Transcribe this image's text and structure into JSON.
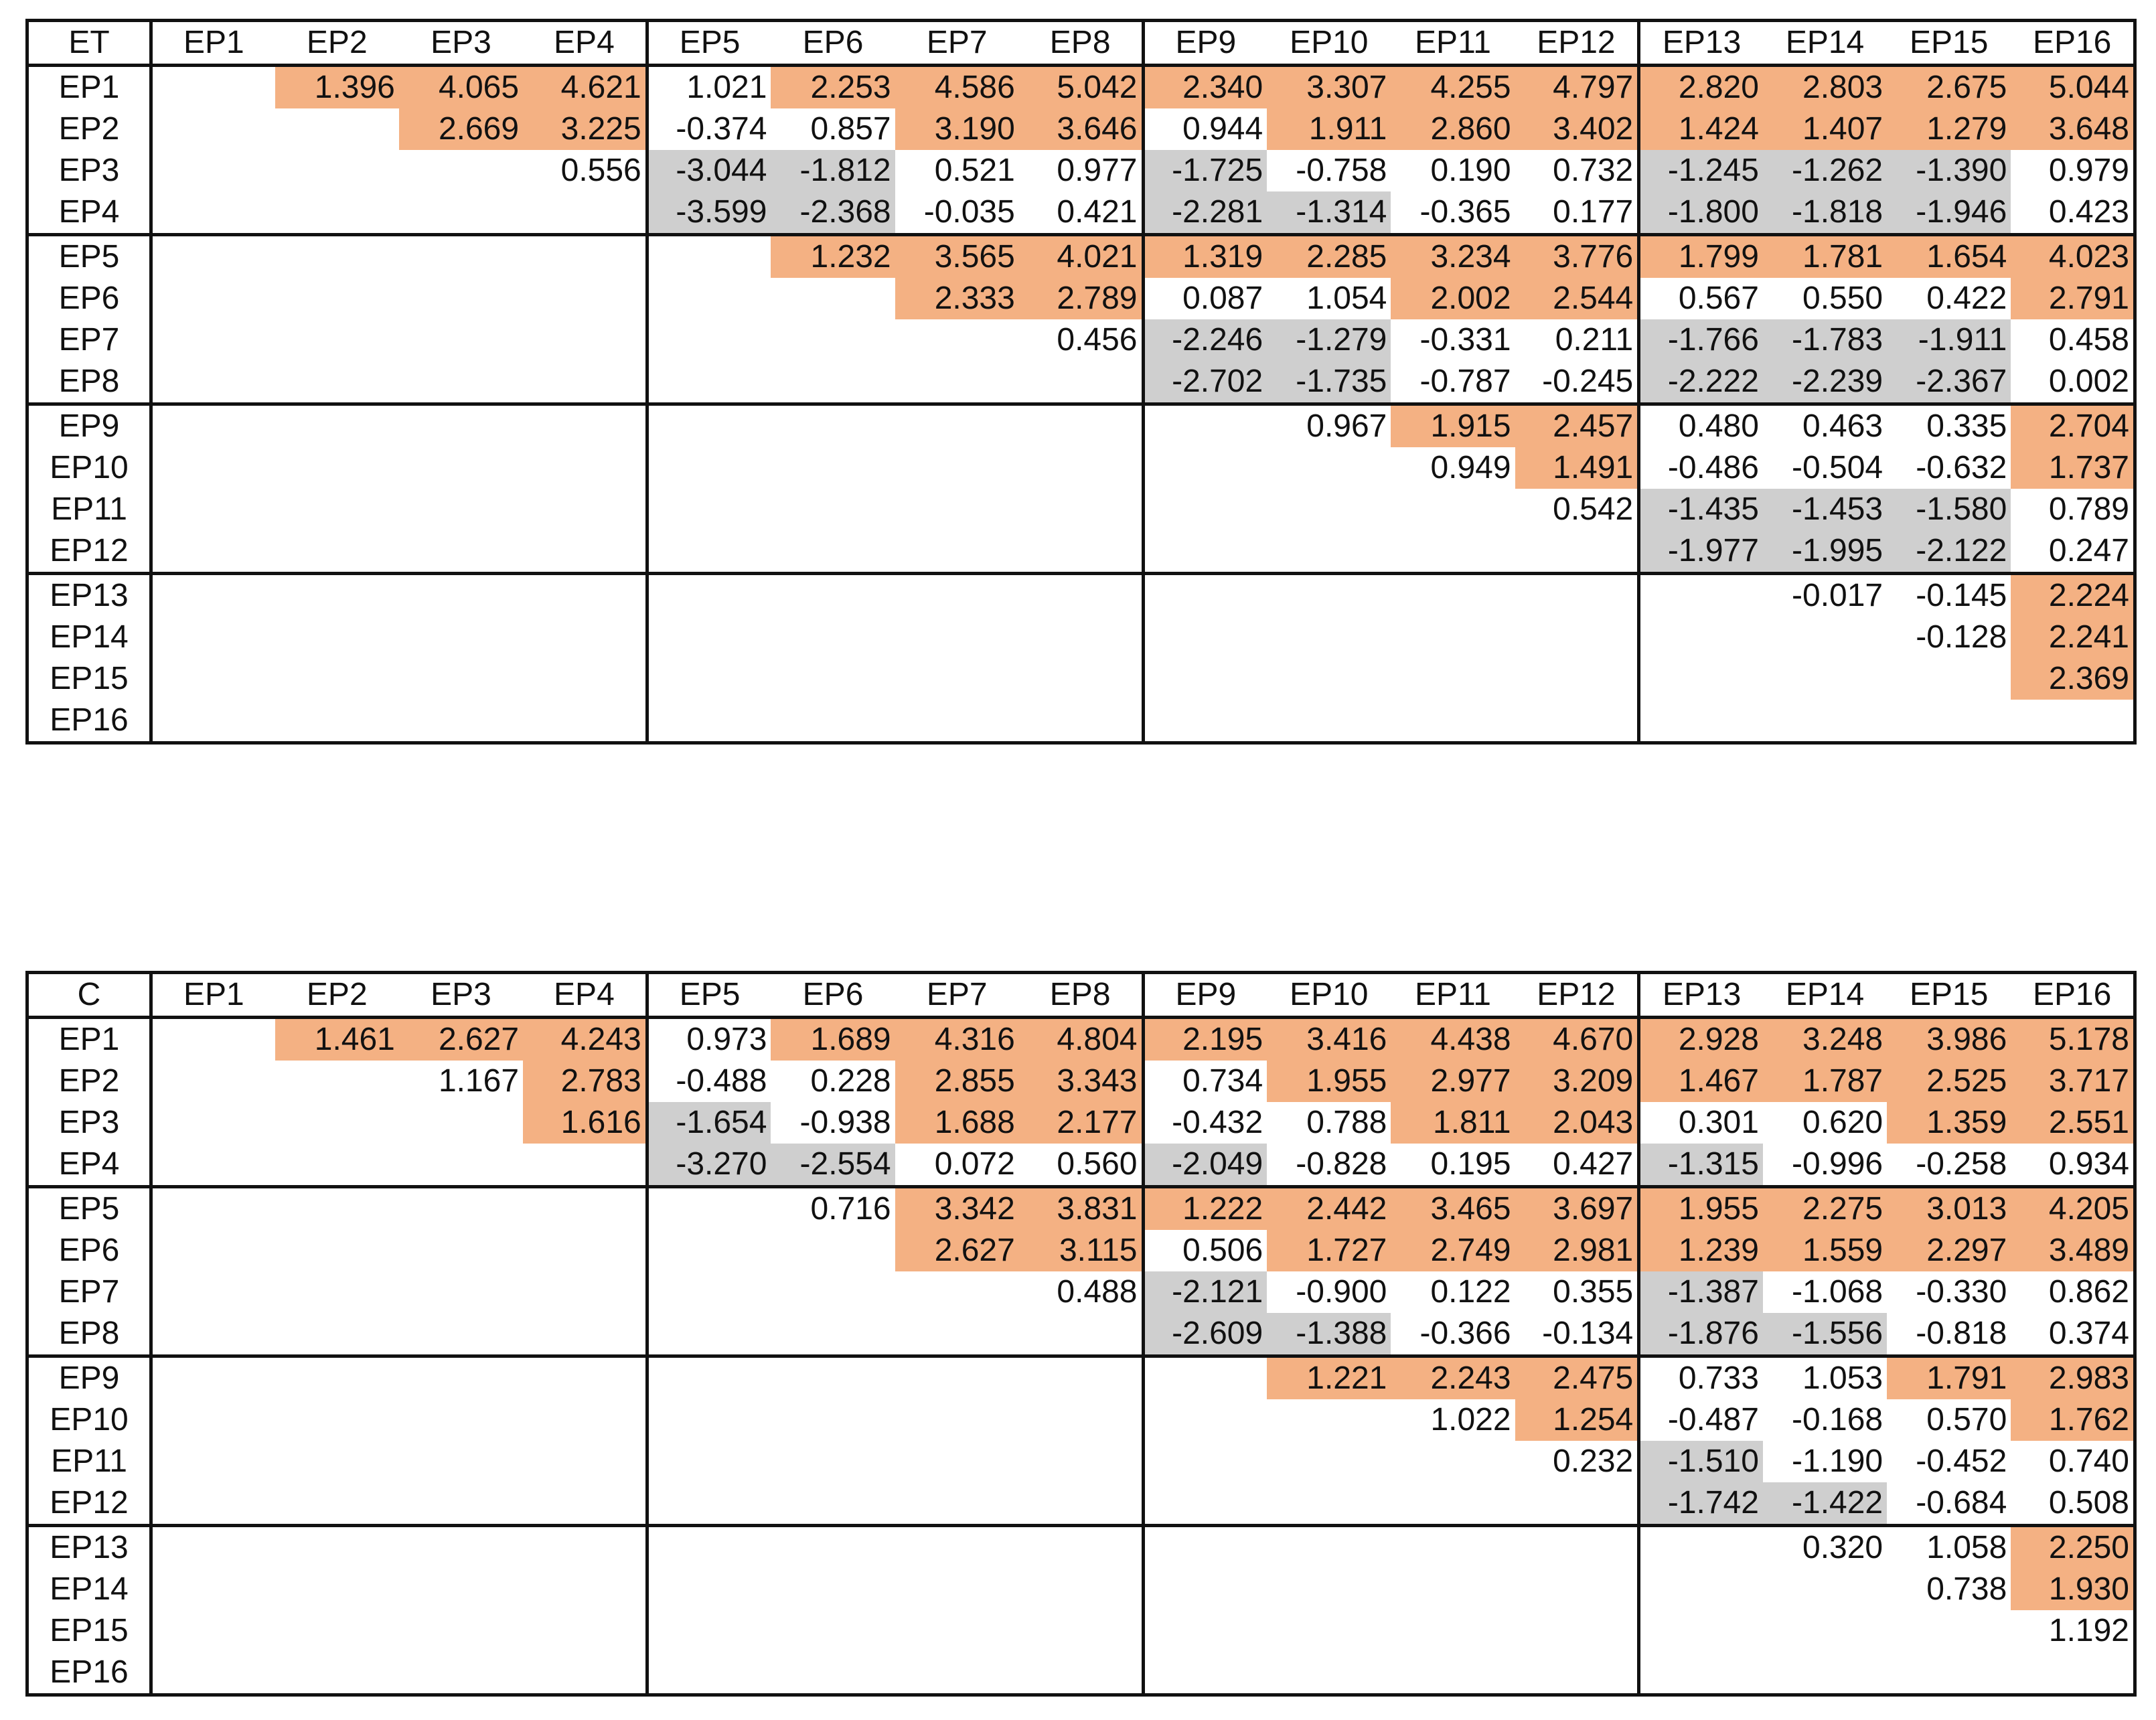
{
  "headers": [
    "EP1",
    "EP2",
    "EP3",
    "EP4",
    "EP5",
    "EP6",
    "EP7",
    "EP8",
    "EP9",
    "EP10",
    "EP11",
    "EP12",
    "EP13",
    "EP14",
    "EP15",
    "EP16"
  ],
  "tables": [
    {
      "label": "ET",
      "rows": [
        [
          null,
          "1.396",
          "4.065",
          "4.621",
          "1.021",
          "2.253",
          "4.586",
          "5.042",
          "2.340",
          "3.307",
          "4.255",
          "4.797",
          "2.820",
          "2.803",
          "2.675",
          "5.044"
        ],
        [
          null,
          null,
          "2.669",
          "3.225",
          "-0.374",
          "0.857",
          "3.190",
          "3.646",
          "0.944",
          "1.911",
          "2.860",
          "3.402",
          "1.424",
          "1.407",
          "1.279",
          "3.648"
        ],
        [
          null,
          null,
          null,
          "0.556",
          "-3.044",
          "-1.812",
          "0.521",
          "0.977",
          "-1.725",
          "-0.758",
          "0.190",
          "0.732",
          "-1.245",
          "-1.262",
          "-1.390",
          "0.979"
        ],
        [
          null,
          null,
          null,
          null,
          "-3.599",
          "-2.368",
          "-0.035",
          "0.421",
          "-2.281",
          "-1.314",
          "-0.365",
          "0.177",
          "-1.800",
          "-1.818",
          "-1.946",
          "0.423"
        ],
        [
          null,
          null,
          null,
          null,
          null,
          "1.232",
          "3.565",
          "4.021",
          "1.319",
          "2.285",
          "3.234",
          "3.776",
          "1.799",
          "1.781",
          "1.654",
          "4.023"
        ],
        [
          null,
          null,
          null,
          null,
          null,
          null,
          "2.333",
          "2.789",
          "0.087",
          "1.054",
          "2.002",
          "2.544",
          "0.567",
          "0.550",
          "0.422",
          "2.791"
        ],
        [
          null,
          null,
          null,
          null,
          null,
          null,
          null,
          "0.456",
          "-2.246",
          "-1.279",
          "-0.331",
          "0.211",
          "-1.766",
          "-1.783",
          "-1.911",
          "0.458"
        ],
        [
          null,
          null,
          null,
          null,
          null,
          null,
          null,
          null,
          "-2.702",
          "-1.735",
          "-0.787",
          "-0.245",
          "-2.222",
          "-2.239",
          "-2.367",
          "0.002"
        ],
        [
          null,
          null,
          null,
          null,
          null,
          null,
          null,
          null,
          null,
          "0.967",
          "1.915",
          "2.457",
          "0.480",
          "0.463",
          "0.335",
          "2.704"
        ],
        [
          null,
          null,
          null,
          null,
          null,
          null,
          null,
          null,
          null,
          null,
          "0.949",
          "1.491",
          "-0.486",
          "-0.504",
          "-0.632",
          "1.737"
        ],
        [
          null,
          null,
          null,
          null,
          null,
          null,
          null,
          null,
          null,
          null,
          null,
          "0.542",
          "-1.435",
          "-1.453",
          "-1.580",
          "0.789"
        ],
        [
          null,
          null,
          null,
          null,
          null,
          null,
          null,
          null,
          null,
          null,
          null,
          null,
          "-1.977",
          "-1.995",
          "-2.122",
          "0.247"
        ],
        [
          null,
          null,
          null,
          null,
          null,
          null,
          null,
          null,
          null,
          null,
          null,
          null,
          null,
          "-0.017",
          "-0.145",
          "2.224"
        ],
        [
          null,
          null,
          null,
          null,
          null,
          null,
          null,
          null,
          null,
          null,
          null,
          null,
          null,
          null,
          "-0.128",
          "2.241"
        ],
        [
          null,
          null,
          null,
          null,
          null,
          null,
          null,
          null,
          null,
          null,
          null,
          null,
          null,
          null,
          null,
          "2.369"
        ],
        [
          null,
          null,
          null,
          null,
          null,
          null,
          null,
          null,
          null,
          null,
          null,
          null,
          null,
          null,
          null,
          null
        ]
      ],
      "shading": [
        [
          "",
          "pos",
          "pos",
          "pos",
          "",
          "pos",
          "pos",
          "pos",
          "pos",
          "pos",
          "pos",
          "pos",
          "pos",
          "pos",
          "pos",
          "pos"
        ],
        [
          "",
          "",
          "pos",
          "pos",
          "",
          "",
          "pos",
          "pos",
          "",
          "pos",
          "pos",
          "pos",
          "pos",
          "pos",
          "pos",
          "pos"
        ],
        [
          "",
          "",
          "",
          "",
          "neg",
          "neg",
          "",
          "",
          "neg",
          "",
          "",
          "",
          "neg",
          "neg",
          "neg",
          ""
        ],
        [
          "",
          "",
          "",
          "",
          "neg",
          "neg",
          "",
          "",
          "neg",
          "neg",
          "",
          "",
          "neg",
          "neg",
          "neg",
          ""
        ],
        [
          "",
          "",
          "",
          "",
          "",
          "pos",
          "pos",
          "pos",
          "pos",
          "pos",
          "pos",
          "pos",
          "pos",
          "pos",
          "pos",
          "pos"
        ],
        [
          "",
          "",
          "",
          "",
          "",
          "",
          "pos",
          "pos",
          "",
          "",
          "pos",
          "pos",
          "",
          "",
          "",
          "pos"
        ],
        [
          "",
          "",
          "",
          "",
          "",
          "",
          "",
          "",
          "neg",
          "neg",
          "",
          "",
          "neg",
          "neg",
          "neg",
          ""
        ],
        [
          "",
          "",
          "",
          "",
          "",
          "",
          "",
          "",
          "neg",
          "neg",
          "",
          "",
          "neg",
          "neg",
          "neg",
          ""
        ],
        [
          "",
          "",
          "",
          "",
          "",
          "",
          "",
          "",
          "",
          "",
          "pos",
          "pos",
          "",
          "",
          "",
          "pos"
        ],
        [
          "",
          "",
          "",
          "",
          "",
          "",
          "",
          "",
          "",
          "",
          "",
          "pos",
          "",
          "",
          "",
          "pos"
        ],
        [
          "",
          "",
          "",
          "",
          "",
          "",
          "",
          "",
          "",
          "",
          "",
          "",
          "neg",
          "neg",
          "neg",
          ""
        ],
        [
          "",
          "",
          "",
          "",
          "",
          "",
          "",
          "",
          "",
          "",
          "",
          "",
          "neg",
          "neg",
          "neg",
          ""
        ],
        [
          "",
          "",
          "",
          "",
          "",
          "",
          "",
          "",
          "",
          "",
          "",
          "",
          "",
          "",
          "",
          "pos"
        ],
        [
          "",
          "",
          "",
          "",
          "",
          "",
          "",
          "",
          "",
          "",
          "",
          "",
          "",
          "",
          "",
          "pos"
        ],
        [
          "",
          "",
          "",
          "",
          "",
          "",
          "",
          "",
          "",
          "",
          "",
          "",
          "",
          "",
          "",
          "pos"
        ],
        [
          "",
          "",
          "",
          "",
          "",
          "",
          "",
          "",
          "",
          "",
          "",
          "",
          "",
          "",
          "",
          ""
        ]
      ]
    },
    {
      "label": "C",
      "rows": [
        [
          null,
          "1.461",
          "2.627",
          "4.243",
          "0.973",
          "1.689",
          "4.316",
          "4.804",
          "2.195",
          "3.416",
          "4.438",
          "4.670",
          "2.928",
          "3.248",
          "3.986",
          "5.178"
        ],
        [
          null,
          null,
          "1.167",
          "2.783",
          "-0.488",
          "0.228",
          "2.855",
          "3.343",
          "0.734",
          "1.955",
          "2.977",
          "3.209",
          "1.467",
          "1.787",
          "2.525",
          "3.717"
        ],
        [
          null,
          null,
          null,
          "1.616",
          "-1.654",
          "-0.938",
          "1.688",
          "2.177",
          "-0.432",
          "0.788",
          "1.811",
          "2.043",
          "0.301",
          "0.620",
          "1.359",
          "2.551"
        ],
        [
          null,
          null,
          null,
          null,
          "-3.270",
          "-2.554",
          "0.072",
          "0.560",
          "-2.049",
          "-0.828",
          "0.195",
          "0.427",
          "-1.315",
          "-0.996",
          "-0.258",
          "0.934"
        ],
        [
          null,
          null,
          null,
          null,
          null,
          "0.716",
          "3.342",
          "3.831",
          "1.222",
          "2.442",
          "3.465",
          "3.697",
          "1.955",
          "2.275",
          "3.013",
          "4.205"
        ],
        [
          null,
          null,
          null,
          null,
          null,
          null,
          "2.627",
          "3.115",
          "0.506",
          "1.727",
          "2.749",
          "2.981",
          "1.239",
          "1.559",
          "2.297",
          "3.489"
        ],
        [
          null,
          null,
          null,
          null,
          null,
          null,
          null,
          "0.488",
          "-2.121",
          "-0.900",
          "0.122",
          "0.355",
          "-1.387",
          "-1.068",
          "-0.330",
          "0.862"
        ],
        [
          null,
          null,
          null,
          null,
          null,
          null,
          null,
          null,
          "-2.609",
          "-1.388",
          "-0.366",
          "-0.134",
          "-1.876",
          "-1.556",
          "-0.818",
          "0.374"
        ],
        [
          null,
          null,
          null,
          null,
          null,
          null,
          null,
          null,
          null,
          "1.221",
          "2.243",
          "2.475",
          "0.733",
          "1.053",
          "1.791",
          "2.983"
        ],
        [
          null,
          null,
          null,
          null,
          null,
          null,
          null,
          null,
          null,
          null,
          "1.022",
          "1.254",
          "-0.487",
          "-0.168",
          "0.570",
          "1.762"
        ],
        [
          null,
          null,
          null,
          null,
          null,
          null,
          null,
          null,
          null,
          null,
          null,
          "0.232",
          "-1.510",
          "-1.190",
          "-0.452",
          "0.740"
        ],
        [
          null,
          null,
          null,
          null,
          null,
          null,
          null,
          null,
          null,
          null,
          null,
          null,
          "-1.742",
          "-1.422",
          "-0.684",
          "0.508"
        ],
        [
          null,
          null,
          null,
          null,
          null,
          null,
          null,
          null,
          null,
          null,
          null,
          null,
          null,
          "0.320",
          "1.058",
          "2.250"
        ],
        [
          null,
          null,
          null,
          null,
          null,
          null,
          null,
          null,
          null,
          null,
          null,
          null,
          null,
          null,
          "0.738",
          "1.930"
        ],
        [
          null,
          null,
          null,
          null,
          null,
          null,
          null,
          null,
          null,
          null,
          null,
          null,
          null,
          null,
          null,
          "1.192"
        ],
        [
          null,
          null,
          null,
          null,
          null,
          null,
          null,
          null,
          null,
          null,
          null,
          null,
          null,
          null,
          null,
          null
        ]
      ],
      "shading": [
        [
          "",
          "pos",
          "pos",
          "pos",
          "",
          "pos",
          "pos",
          "pos",
          "pos",
          "pos",
          "pos",
          "pos",
          "pos",
          "pos",
          "pos",
          "pos"
        ],
        [
          "",
          "",
          "",
          "pos",
          "",
          "",
          "pos",
          "pos",
          "",
          "pos",
          "pos",
          "pos",
          "pos",
          "pos",
          "pos",
          "pos"
        ],
        [
          "",
          "",
          "",
          "pos",
          "neg",
          "",
          "pos",
          "pos",
          "",
          "",
          "pos",
          "pos",
          "",
          "",
          "pos",
          "pos"
        ],
        [
          "",
          "",
          "",
          "",
          "neg",
          "neg",
          "",
          "",
          "neg",
          "",
          "",
          "",
          "neg",
          "",
          "",
          ""
        ],
        [
          "",
          "",
          "",
          "",
          "",
          "",
          "pos",
          "pos",
          "pos",
          "pos",
          "pos",
          "pos",
          "pos",
          "pos",
          "pos",
          "pos"
        ],
        [
          "",
          "",
          "",
          "",
          "",
          "",
          "pos",
          "pos",
          "",
          "pos",
          "pos",
          "pos",
          "pos",
          "pos",
          "pos",
          "pos"
        ],
        [
          "",
          "",
          "",
          "",
          "",
          "",
          "",
          "",
          "neg",
          "",
          "",
          "",
          "neg",
          "",
          "",
          ""
        ],
        [
          "",
          "",
          "",
          "",
          "",
          "",
          "",
          "",
          "neg",
          "neg",
          "",
          "",
          "neg",
          "neg",
          "",
          ""
        ],
        [
          "",
          "",
          "",
          "",
          "",
          "",
          "",
          "",
          "",
          "pos",
          "pos",
          "pos",
          "",
          "",
          "pos",
          "pos"
        ],
        [
          "",
          "",
          "",
          "",
          "",
          "",
          "",
          "",
          "",
          "",
          "",
          "pos",
          "",
          "",
          "",
          "pos"
        ],
        [
          "",
          "",
          "",
          "",
          "",
          "",
          "",
          "",
          "",
          "",
          "",
          "",
          "neg",
          "",
          "",
          ""
        ],
        [
          "",
          "",
          "",
          "",
          "",
          "",
          "",
          "",
          "",
          "",
          "",
          "",
          "neg",
          "neg",
          "",
          ""
        ],
        [
          "",
          "",
          "",
          "",
          "",
          "",
          "",
          "",
          "",
          "",
          "",
          "",
          "",
          "",
          "",
          "pos"
        ],
        [
          "",
          "",
          "",
          "",
          "",
          "",
          "",
          "",
          "",
          "",
          "",
          "",
          "",
          "",
          "",
          "pos"
        ],
        [
          "",
          "",
          "",
          "",
          "",
          "",
          "",
          "",
          "",
          "",
          "",
          "",
          "",
          "",
          "",
          ""
        ],
        [
          "",
          "",
          "",
          "",
          "",
          "",
          "",
          "",
          "",
          "",
          "",
          "",
          "",
          "",
          "",
          ""
        ]
      ]
    }
  ]
}
